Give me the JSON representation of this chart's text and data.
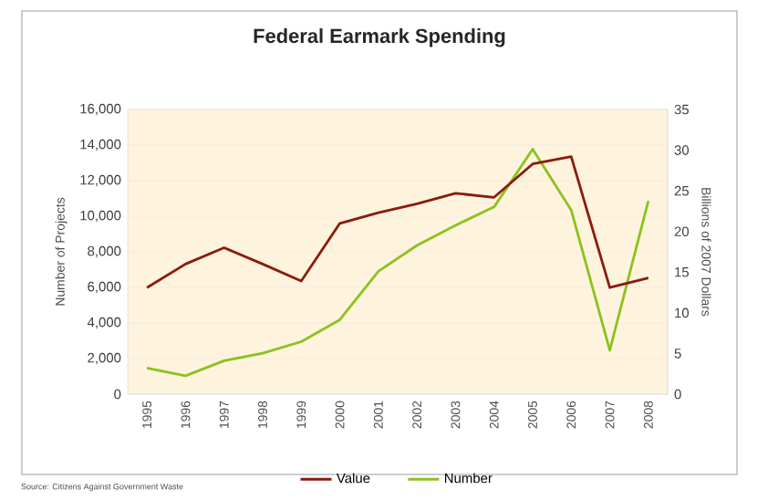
{
  "chart_data": {
    "type": "line",
    "title": "Federal Earmark Spending",
    "categories": [
      "1995",
      "1996",
      "1997",
      "1998",
      "1999",
      "2000",
      "2001",
      "2002",
      "2003",
      "2004",
      "2005",
      "2006",
      "2007",
      "2008"
    ],
    "series": [
      {
        "name": "Value",
        "color": "#8b1a0e",
        "axis": "y2",
        "values": [
          13.1,
          16.0,
          18.0,
          16.0,
          13.9,
          21.0,
          22.3,
          23.4,
          24.7,
          24.2,
          28.3,
          29.2,
          13.1,
          14.3
        ]
      },
      {
        "name": "Number",
        "color": "#8cc21e",
        "values": [
          1470,
          1030,
          1880,
          2300,
          2950,
          4180,
          6900,
          8360,
          9490,
          10520,
          13770,
          10350,
          2470,
          10860
        ]
      }
    ],
    "ylabel": "Number of Projects",
    "y2label": "Billions of 2007 Dollars",
    "ylim": [
      0,
      16000
    ],
    "yticks": [
      {
        "value": 0,
        "label": "0"
      },
      {
        "value": 2000,
        "label": "2,000"
      },
      {
        "value": 4000,
        "label": "4,000"
      },
      {
        "value": 6000,
        "label": "6,000"
      },
      {
        "value": 8000,
        "label": "8,000"
      },
      {
        "value": 10000,
        "label": "10,000"
      },
      {
        "value": 12000,
        "label": "12,000"
      },
      {
        "value": 14000,
        "label": "14,000"
      },
      {
        "value": 16000,
        "label": "16,000"
      }
    ],
    "y2lim": [
      0,
      35
    ],
    "y2ticks": [
      0,
      5,
      10,
      15,
      20,
      25,
      30,
      35
    ],
    "grid": "y",
    "legend": "bottom",
    "line_style": "solid",
    "annotations": [
      "Source: Citizens Against Government Waste"
    ]
  }
}
